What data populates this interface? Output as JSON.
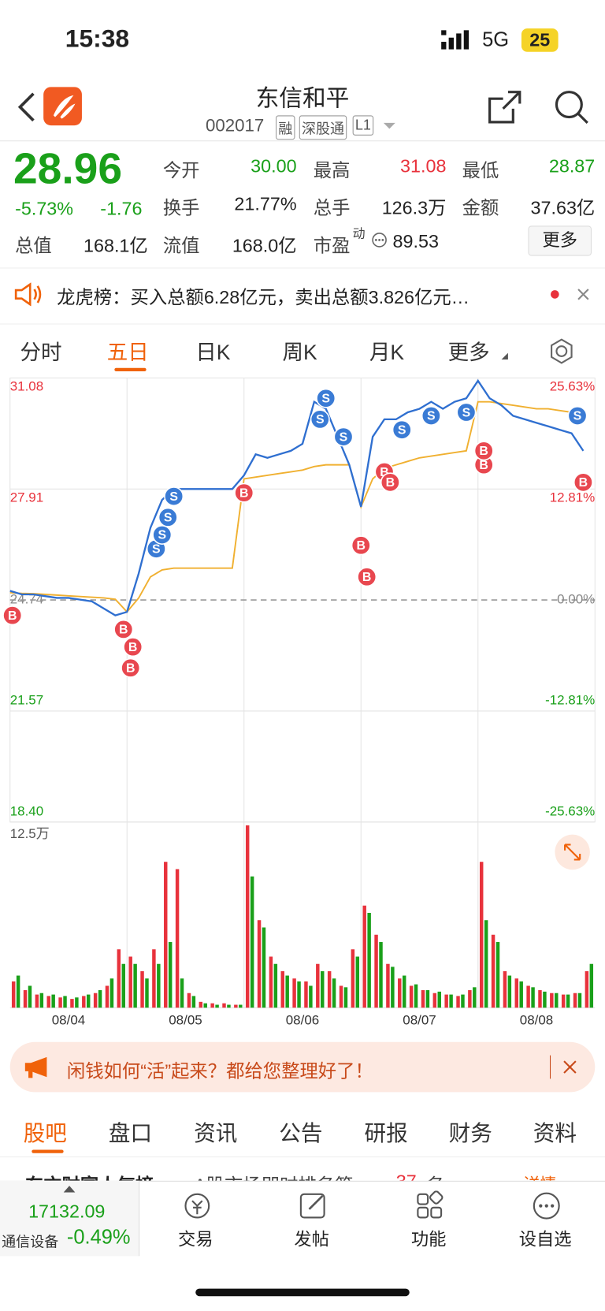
{
  "status": {
    "time": "15:38",
    "network": "5G",
    "battery": "25"
  },
  "header": {
    "title": "东信和平",
    "code": "002017",
    "tags": [
      "融",
      "深股通",
      "L1"
    ]
  },
  "quote": {
    "price": "28.96",
    "change_pct": "-5.73%",
    "change": "-1.76",
    "fields": [
      {
        "label": "今开",
        "value": "30.00"
      },
      {
        "label": "最高",
        "value": "31.08"
      },
      {
        "label": "最低",
        "value": "28.87"
      },
      {
        "label": "换手",
        "value": "21.77%"
      },
      {
        "label": "总手",
        "value": "126.3万"
      },
      {
        "label": "金额",
        "value": "37.63亿"
      },
      {
        "label": "总值",
        "value": "168.1亿"
      },
      {
        "label": "流值",
        "value": "168.0亿"
      },
      {
        "label": "市盈",
        "superscript": "动",
        "value": "89.53"
      }
    ],
    "more": "更多"
  },
  "notice": "龙虎榜：买入总额6.28亿元，卖出总额3.826亿元…",
  "chart_tabs": [
    "分时",
    "五日",
    "日K",
    "周K",
    "月K",
    "更多"
  ],
  "chart_data": [
    {
      "type": "line",
      "x": [
        0,
        0.1,
        0.2,
        0.3,
        0.4,
        0.5,
        0.6,
        0.7,
        0.8,
        0.9,
        1,
        1.1,
        1.2,
        1.3,
        1.4,
        1.5,
        1.6,
        1.7,
        1.8,
        1.9,
        2,
        2.1,
        2.2,
        2.3,
        2.4,
        2.5,
        2.6,
        2.7,
        2.8,
        2.9,
        3,
        3.1,
        3.2,
        3.3,
        3.4,
        3.5,
        3.6,
        3.7,
        3.8,
        3.9,
        4,
        4.1,
        4.2,
        4.3,
        4.4,
        4.5,
        4.6,
        4.7,
        4.8,
        4.9
      ],
      "xlim": [
        0,
        5
      ],
      "xticks": [
        {
          "value": 0.5,
          "label": "08/04"
        },
        {
          "value": 1.5,
          "label": "08/05"
        },
        {
          "value": 2.5,
          "label": "08/06"
        },
        {
          "value": 3.5,
          "label": "08/07"
        },
        {
          "value": 4.5,
          "label": "08/08"
        }
      ],
      "ylim": [
        18.4,
        31.08
      ],
      "yticks": [
        31.08,
        27.91,
        24.74,
        21.57,
        {
          "value": 18.4,
          "label": "18.40"
        }
      ],
      "y2lim": [
        -25.63,
        25.63
      ],
      "y2ticks": [
        {
          "value": 25.63,
          "label": "25.63%"
        },
        {
          "value": 12.81,
          "label": "12.81%"
        },
        {
          "value": 0,
          "label": "0.00%"
        },
        {
          "value": -12.81,
          "label": "-12.81%"
        },
        {
          "value": -25.63,
          "label": "-25.63%"
        }
      ],
      "reference_line": 24.74,
      "series": [
        {
          "color": "#2f6fd0",
          "values": [
            25.0,
            24.9,
            24.9,
            24.85,
            24.8,
            24.8,
            24.75,
            24.7,
            24.5,
            24.3,
            24.4,
            25.5,
            26.8,
            27.6,
            27.91,
            27.91,
            27.91,
            27.91,
            27.91,
            27.91,
            28.3,
            28.9,
            28.8,
            28.9,
            29.0,
            29.2,
            30.4,
            30.2,
            29.4,
            28.6,
            27.4,
            29.4,
            29.9,
            29.9,
            30.1,
            30.2,
            30.4,
            30.2,
            30.4,
            30.5,
            31.0,
            30.5,
            30.3,
            30.0,
            29.9,
            29.8,
            29.7,
            29.6,
            29.5,
            29.0
          ]
        },
        {
          "color": "#f0b030",
          "values": [
            24.95,
            24.93,
            24.92,
            24.9,
            24.88,
            24.86,
            24.84,
            24.82,
            24.8,
            24.76,
            24.4,
            24.8,
            25.4,
            25.6,
            25.65,
            25.65,
            25.65,
            25.65,
            25.65,
            25.65,
            28.2,
            28.25,
            28.3,
            28.35,
            28.4,
            28.45,
            28.55,
            28.6,
            28.6,
            28.6,
            27.4,
            28.2,
            28.5,
            28.6,
            28.7,
            28.8,
            28.85,
            28.9,
            28.95,
            29.0,
            30.4,
            30.4,
            30.35,
            30.3,
            30.25,
            30.2,
            30.2,
            30.15,
            30.1,
            30.1
          ]
        }
      ],
      "markers": [
        {
          "text": "B",
          "x": 0.02,
          "value": 24.3,
          "color": "#e8474f"
        },
        {
          "text": "B",
          "x": 0.97,
          "value": 23.9,
          "color": "#e8474f"
        },
        {
          "text": "B",
          "x": 1.05,
          "value": 23.4,
          "color": "#e8474f"
        },
        {
          "text": "B",
          "x": 1.03,
          "value": 22.8,
          "color": "#e8474f"
        },
        {
          "text": "S",
          "x": 1.25,
          "value": 26.2,
          "color": "#3a7bd5"
        },
        {
          "text": "S",
          "x": 1.3,
          "value": 26.6,
          "color": "#3a7bd5"
        },
        {
          "text": "S",
          "x": 1.35,
          "value": 27.1,
          "color": "#3a7bd5"
        },
        {
          "text": "S",
          "x": 1.4,
          "value": 27.7,
          "color": "#3a7bd5"
        },
        {
          "text": "B",
          "x": 2.0,
          "value": 27.8,
          "color": "#e8474f"
        },
        {
          "text": "S",
          "x": 2.65,
          "value": 29.9,
          "color": "#3a7bd5"
        },
        {
          "text": "S",
          "x": 2.7,
          "value": 30.5,
          "color": "#3a7bd5"
        },
        {
          "text": "S",
          "x": 2.85,
          "value": 29.4,
          "color": "#3a7bd5"
        },
        {
          "text": "B",
          "x": 3.0,
          "value": 26.3,
          "color": "#e8474f"
        },
        {
          "text": "B",
          "x": 3.05,
          "value": 25.4,
          "color": "#e8474f"
        },
        {
          "text": "B",
          "x": 3.2,
          "value": 28.4,
          "color": "#e8474f"
        },
        {
          "text": "B",
          "x": 3.25,
          "value": 28.1,
          "color": "#e8474f"
        },
        {
          "text": "S",
          "x": 3.35,
          "value": 29.6,
          "color": "#3a7bd5"
        },
        {
          "text": "S",
          "x": 3.6,
          "value": 30.0,
          "color": "#3a7bd5"
        },
        {
          "text": "S",
          "x": 3.9,
          "value": 30.1,
          "color": "#3a7bd5"
        },
        {
          "text": "B",
          "x": 4.05,
          "value": 28.6,
          "color": "#e8474f"
        },
        {
          "text": "B",
          "x": 4.05,
          "value": 29.0,
          "color": "#e8474f"
        },
        {
          "text": "S",
          "x": 4.85,
          "value": 30.0,
          "color": "#3a7bd5"
        },
        {
          "text": "B",
          "x": 4.9,
          "value": 28.1,
          "color": "#e8474f"
        }
      ]
    },
    {
      "type": "bar",
      "x": [
        0,
        0.1,
        0.2,
        0.3,
        0.4,
        0.5,
        0.6,
        0.7,
        0.8,
        0.9,
        1,
        1.1,
        1.2,
        1.3,
        1.4,
        1.5,
        1.6,
        1.7,
        1.8,
        1.9,
        2,
        2.1,
        2.2,
        2.3,
        2.4,
        2.5,
        2.6,
        2.7,
        2.8,
        2.9,
        3,
        3.1,
        3.2,
        3.3,
        3.4,
        3.5,
        3.6,
        3.7,
        3.8,
        3.9,
        4,
        4.1,
        4.2,
        4.3,
        4.4,
        4.5,
        4.6,
        4.7,
        4.8,
        4.9
      ],
      "xlim": [
        0,
        5
      ],
      "ylim": [
        0,
        125000
      ],
      "yticks": [
        {
          "value": 125000,
          "label": "12.5万"
        }
      ],
      "series": [
        {
          "color": "#e8323c",
          "values": [
            18000,
            12000,
            9000,
            8000,
            7000,
            6000,
            8000,
            10000,
            15000,
            40000,
            35000,
            25000,
            40000,
            100000,
            95000,
            10000,
            4000,
            3000,
            3000,
            2000,
            125000,
            60000,
            35000,
            25000,
            20000,
            18000,
            30000,
            25000,
            15000,
            40000,
            70000,
            50000,
            30000,
            20000,
            15000,
            12000,
            10000,
            9000,
            8000,
            12000,
            100000,
            50000,
            25000,
            20000,
            15000,
            12000,
            10000,
            9000,
            10000,
            25000
          ]
        },
        {
          "color": "#1aa01a",
          "values": [
            22000,
            15000,
            10000,
            9000,
            8000,
            7000,
            9000,
            12000,
            20000,
            30000,
            30000,
            20000,
            30000,
            45000,
            20000,
            8000,
            3000,
            2000,
            2000,
            2000,
            90000,
            55000,
            30000,
            22000,
            18000,
            15000,
            25000,
            20000,
            14000,
            35000,
            65000,
            45000,
            28000,
            22000,
            16000,
            12000,
            11000,
            9000,
            9000,
            14000,
            60000,
            45000,
            22000,
            18000,
            14000,
            11000,
            10000,
            9000,
            10000,
            30000
          ]
        }
      ]
    }
  ],
  "ad": "闲钱如何“活”起来？都给您整理好了！",
  "section_tabs": [
    "股吧",
    "盘口",
    "资讯",
    "公告",
    "研报",
    "财务",
    "资料"
  ],
  "ticker": {
    "title": "东方财富人气榜",
    "text": "A股市场即时排名第",
    "rank": "37",
    "unit": "名",
    "link": "详情 »"
  },
  "bottom": {
    "index_value": "17132.09",
    "index_name": "通信设备",
    "index_change": "-0.49%",
    "buttons": [
      "交易",
      "发帖",
      "功能",
      "设自选"
    ]
  }
}
